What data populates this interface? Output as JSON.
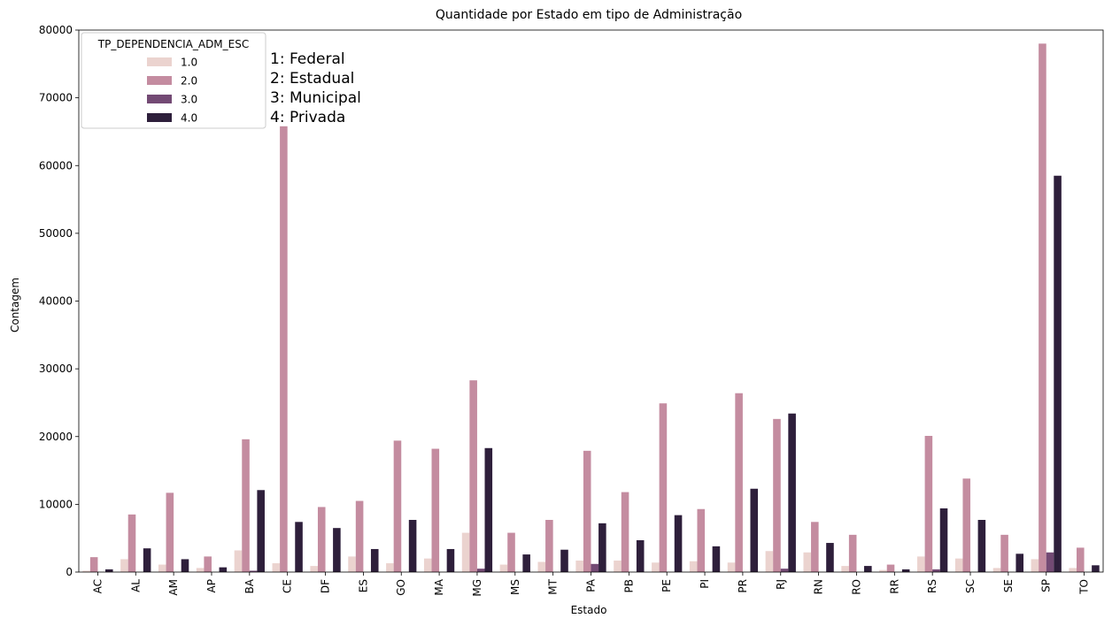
{
  "chart_data": {
    "type": "bar",
    "title": "Quantidade por Estado em tipo de Administração",
    "xlabel": "Estado",
    "ylabel": "Contagem",
    "ylim": [
      0,
      80000
    ],
    "yticks": [
      0,
      10000,
      20000,
      30000,
      40000,
      50000,
      60000,
      70000,
      80000
    ],
    "categories": [
      "AC",
      "AL",
      "AM",
      "AP",
      "BA",
      "CE",
      "DF",
      "ES",
      "GO",
      "MA",
      "MG",
      "MS",
      "MT",
      "PA",
      "PB",
      "PE",
      "PI",
      "PR",
      "RJ",
      "RN",
      "RO",
      "RR",
      "RS",
      "SC",
      "SE",
      "SP",
      "TO"
    ],
    "legend": {
      "title": "TP_DEPENDENCIA_ADM_ESC",
      "placement": "top-left"
    },
    "annotation": [
      "1: Federal",
      "2: Estadual",
      "3: Municipal",
      "4: Privada"
    ],
    "series": [
      {
        "name": "1.0",
        "color": "#ebd3cf",
        "values": [
          200,
          1900,
          1100,
          600,
          3200,
          1300,
          900,
          2300,
          1300,
          2000,
          5800,
          1100,
          1500,
          1700,
          1700,
          1400,
          1600,
          1400,
          3100,
          2900,
          900,
          300,
          2300,
          2000,
          600,
          1900,
          600
        ]
      },
      {
        "name": "2.0",
        "color": "#c48ca0",
        "values": [
          2200,
          8500,
          11700,
          2300,
          19600,
          65800,
          9600,
          10500,
          19400,
          18200,
          28300,
          5800,
          7700,
          17900,
          11800,
          24900,
          9300,
          26400,
          22600,
          7400,
          5500,
          1100,
          20100,
          13800,
          5500,
          78000,
          3600
        ]
      },
      {
        "name": "3.0",
        "color": "#734a74",
        "values": [
          0,
          0,
          0,
          0,
          200,
          0,
          0,
          0,
          0,
          0,
          500,
          0,
          0,
          1200,
          0,
          0,
          0,
          0,
          500,
          0,
          0,
          0,
          400,
          0,
          0,
          2900,
          0
        ]
      },
      {
        "name": "4.0",
        "color": "#2e1f3b",
        "values": [
          400,
          3500,
          1900,
          700,
          12100,
          7400,
          6500,
          3400,
          7700,
          3400,
          18300,
          2600,
          3300,
          7200,
          4700,
          8400,
          3800,
          12300,
          23400,
          4300,
          900,
          400,
          9400,
          7700,
          2700,
          58500,
          1000
        ]
      }
    ]
  }
}
